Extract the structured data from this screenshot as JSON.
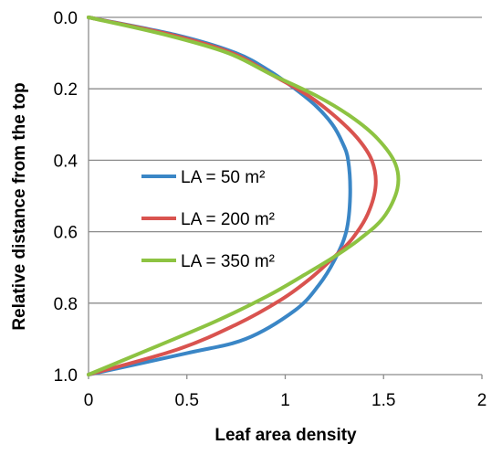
{
  "chart_data": {
    "type": "line",
    "title": "",
    "xlabel": "Leaf area density",
    "ylabel": "Relative distance from the top",
    "xlim": [
      0,
      2
    ],
    "ylim": [
      0.0,
      1.0
    ],
    "y_reversed": true,
    "x_ticks": [
      "0",
      "0.5",
      "1",
      "1.5",
      "2"
    ],
    "y_ticks": [
      "0.0",
      "0.2",
      "0.4",
      "0.6",
      "0.8",
      "1.0"
    ],
    "grid": "horizontal",
    "legend_position": "center-left",
    "series": [
      {
        "name": "LA = 50 m²",
        "color": "#3a86c6",
        "points": [
          {
            "x": 0.0,
            "y": 0.0
          },
          {
            "x": 0.45,
            "y": 0.05
          },
          {
            "x": 0.75,
            "y": 0.1
          },
          {
            "x": 0.92,
            "y": 0.15
          },
          {
            "x": 1.05,
            "y": 0.2
          },
          {
            "x": 1.16,
            "y": 0.25
          },
          {
            "x": 1.24,
            "y": 0.3
          },
          {
            "x": 1.29,
            "y": 0.35
          },
          {
            "x": 1.32,
            "y": 0.4
          },
          {
            "x": 1.33,
            "y": 0.5
          },
          {
            "x": 1.31,
            "y": 0.6
          },
          {
            "x": 1.25,
            "y": 0.68
          },
          {
            "x": 1.17,
            "y": 0.75
          },
          {
            "x": 1.05,
            "y": 0.82
          },
          {
            "x": 0.8,
            "y": 0.9
          },
          {
            "x": 0.5,
            "y": 0.94
          },
          {
            "x": 0.0,
            "y": 1.0
          }
        ]
      },
      {
        "name": "LA = 200 m²",
        "color": "#d9534f",
        "points": [
          {
            "x": 0.0,
            "y": 0.0
          },
          {
            "x": 0.43,
            "y": 0.05
          },
          {
            "x": 0.73,
            "y": 0.1
          },
          {
            "x": 0.93,
            "y": 0.16
          },
          {
            "x": 1.12,
            "y": 0.22
          },
          {
            "x": 1.26,
            "y": 0.28
          },
          {
            "x": 1.37,
            "y": 0.34
          },
          {
            "x": 1.44,
            "y": 0.4
          },
          {
            "x": 1.46,
            "y": 0.47
          },
          {
            "x": 1.42,
            "y": 0.55
          },
          {
            "x": 1.34,
            "y": 0.62
          },
          {
            "x": 1.25,
            "y": 0.67
          },
          {
            "x": 1.13,
            "y": 0.73
          },
          {
            "x": 0.98,
            "y": 0.79
          },
          {
            "x": 0.75,
            "y": 0.86
          },
          {
            "x": 0.45,
            "y": 0.93
          },
          {
            "x": 0.0,
            "y": 1.0
          }
        ]
      },
      {
        "name": "LA = 350 m²",
        "color": "#8dc342",
        "points": [
          {
            "x": 0.0,
            "y": 0.0
          },
          {
            "x": 0.4,
            "y": 0.05
          },
          {
            "x": 0.71,
            "y": 0.1
          },
          {
            "x": 0.93,
            "y": 0.16
          },
          {
            "x": 1.16,
            "y": 0.22
          },
          {
            "x": 1.34,
            "y": 0.28
          },
          {
            "x": 1.47,
            "y": 0.34
          },
          {
            "x": 1.56,
            "y": 0.41
          },
          {
            "x": 1.57,
            "y": 0.48
          },
          {
            "x": 1.5,
            "y": 0.56
          },
          {
            "x": 1.38,
            "y": 0.62
          },
          {
            "x": 1.25,
            "y": 0.67
          },
          {
            "x": 1.1,
            "y": 0.72
          },
          {
            "x": 0.91,
            "y": 0.78
          },
          {
            "x": 0.65,
            "y": 0.85
          },
          {
            "x": 0.35,
            "y": 0.92
          },
          {
            "x": 0.0,
            "y": 1.0
          }
        ]
      }
    ]
  }
}
